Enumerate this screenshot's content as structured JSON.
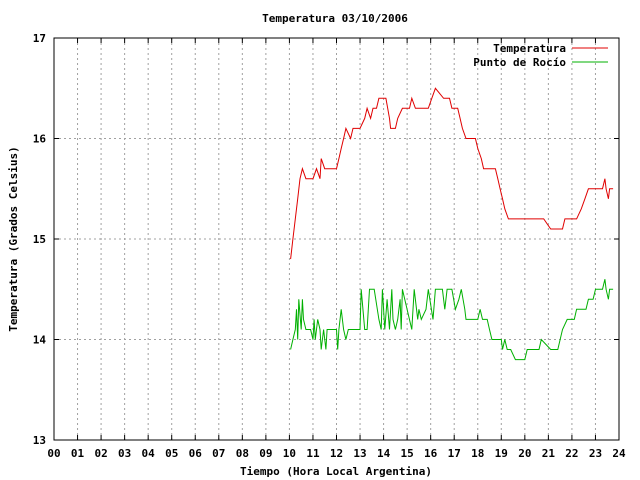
{
  "chart_data": {
    "type": "line",
    "title": "Temperatura 03/10/2006",
    "xlabel": "Tiempo (Hora Local Argentina)",
    "ylabel": "Temperatura (Grados Celsius)",
    "xlim": [
      0,
      24
    ],
    "ylim": [
      13,
      17
    ],
    "xticks": [
      0,
      1,
      2,
      3,
      4,
      5,
      6,
      7,
      8,
      9,
      10,
      11,
      12,
      13,
      14,
      15,
      16,
      17,
      18,
      19,
      20,
      21,
      22,
      23,
      24
    ],
    "xtick_labels": [
      "00",
      "01",
      "02",
      "03",
      "04",
      "05",
      "06",
      "07",
      "08",
      "09",
      "10",
      "11",
      "12",
      "13",
      "14",
      "15",
      "16",
      "17",
      "18",
      "19",
      "20",
      "21",
      "22",
      "23",
      "24"
    ],
    "yticks": [
      13,
      14,
      15,
      16,
      17
    ],
    "ytick_labels": [
      "13",
      "14",
      "15",
      "16",
      "17"
    ],
    "grid": true,
    "legend_position": "top-right",
    "series": [
      {
        "name": "Temperatura",
        "color": "#e00000",
        "points": [
          [
            10.05,
            14.8
          ],
          [
            10.15,
            15.0
          ],
          [
            10.25,
            15.2
          ],
          [
            10.35,
            15.4
          ],
          [
            10.45,
            15.6
          ],
          [
            10.55,
            15.7
          ],
          [
            10.7,
            15.6
          ],
          [
            11.0,
            15.6
          ],
          [
            11.15,
            15.7
          ],
          [
            11.3,
            15.6
          ],
          [
            11.35,
            15.8
          ],
          [
            11.5,
            15.7
          ],
          [
            11.8,
            15.7
          ],
          [
            12.0,
            15.7
          ],
          [
            12.1,
            15.8
          ],
          [
            12.2,
            15.9
          ],
          [
            12.3,
            16.0
          ],
          [
            12.4,
            16.1
          ],
          [
            12.6,
            16.0
          ],
          [
            12.7,
            16.1
          ],
          [
            13.0,
            16.1
          ],
          [
            13.2,
            16.2
          ],
          [
            13.3,
            16.3
          ],
          [
            13.45,
            16.2
          ],
          [
            13.55,
            16.3
          ],
          [
            13.7,
            16.3
          ],
          [
            13.8,
            16.4
          ],
          [
            14.1,
            16.4
          ],
          [
            14.25,
            16.2
          ],
          [
            14.3,
            16.1
          ],
          [
            14.5,
            16.1
          ],
          [
            14.6,
            16.2
          ],
          [
            14.8,
            16.3
          ],
          [
            15.1,
            16.3
          ],
          [
            15.2,
            16.4
          ],
          [
            15.35,
            16.3
          ],
          [
            15.9,
            16.3
          ],
          [
            16.05,
            16.4
          ],
          [
            16.2,
            16.5
          ],
          [
            16.55,
            16.4
          ],
          [
            16.8,
            16.4
          ],
          [
            16.9,
            16.3
          ],
          [
            17.15,
            16.3
          ],
          [
            17.25,
            16.2
          ],
          [
            17.35,
            16.1
          ],
          [
            17.5,
            16.0
          ],
          [
            17.9,
            16.0
          ],
          [
            18.0,
            15.9
          ],
          [
            18.15,
            15.8
          ],
          [
            18.25,
            15.7
          ],
          [
            18.75,
            15.7
          ],
          [
            18.85,
            15.6
          ],
          [
            18.95,
            15.5
          ],
          [
            19.05,
            15.4
          ],
          [
            19.15,
            15.3
          ],
          [
            19.3,
            15.2
          ],
          [
            20.8,
            15.2
          ],
          [
            21.1,
            15.1
          ],
          [
            21.6,
            15.1
          ],
          [
            21.7,
            15.2
          ],
          [
            22.2,
            15.2
          ],
          [
            22.4,
            15.3
          ],
          [
            22.55,
            15.4
          ],
          [
            22.7,
            15.5
          ],
          [
            23.3,
            15.5
          ],
          [
            23.4,
            15.6
          ],
          [
            23.45,
            15.5
          ],
          [
            23.55,
            15.4
          ],
          [
            23.6,
            15.5
          ],
          [
            23.75,
            15.5
          ]
        ]
      },
      {
        "name": "Punto de Rocío",
        "color": "#00b000",
        "points": [
          [
            10.05,
            13.9
          ],
          [
            10.15,
            14.0
          ],
          [
            10.25,
            14.1
          ],
          [
            10.3,
            14.3
          ],
          [
            10.35,
            14.0
          ],
          [
            10.4,
            14.4
          ],
          [
            10.5,
            14.1
          ],
          [
            10.55,
            14.4
          ],
          [
            10.6,
            14.2
          ],
          [
            10.7,
            14.1
          ],
          [
            10.9,
            14.1
          ],
          [
            11.0,
            14.0
          ],
          [
            11.05,
            14.2
          ],
          [
            11.1,
            14.0
          ],
          [
            11.2,
            14.2
          ],
          [
            11.3,
            14.1
          ],
          [
            11.35,
            13.9
          ],
          [
            11.45,
            14.1
          ],
          [
            11.55,
            13.9
          ],
          [
            11.6,
            14.1
          ],
          [
            12.0,
            14.1
          ],
          [
            12.05,
            13.9
          ],
          [
            12.1,
            14.1
          ],
          [
            12.2,
            14.3
          ],
          [
            12.3,
            14.1
          ],
          [
            12.4,
            14.0
          ],
          [
            12.5,
            14.1
          ],
          [
            13.0,
            14.1
          ],
          [
            13.05,
            14.5
          ],
          [
            13.2,
            14.1
          ],
          [
            13.3,
            14.1
          ],
          [
            13.4,
            14.5
          ],
          [
            13.6,
            14.5
          ],
          [
            13.8,
            14.2
          ],
          [
            13.9,
            14.1
          ],
          [
            13.95,
            14.5
          ],
          [
            14.05,
            14.1
          ],
          [
            14.15,
            14.4
          ],
          [
            14.25,
            14.1
          ],
          [
            14.35,
            14.5
          ],
          [
            14.4,
            14.2
          ],
          [
            14.5,
            14.1
          ],
          [
            14.6,
            14.2
          ],
          [
            14.7,
            14.4
          ],
          [
            14.75,
            14.1
          ],
          [
            14.8,
            14.5
          ],
          [
            15.2,
            14.1
          ],
          [
            15.3,
            14.5
          ],
          [
            15.45,
            14.2
          ],
          [
            15.5,
            14.3
          ],
          [
            15.6,
            14.2
          ],
          [
            15.8,
            14.3
          ],
          [
            15.9,
            14.5
          ],
          [
            16.1,
            14.2
          ],
          [
            16.2,
            14.5
          ],
          [
            16.5,
            14.5
          ],
          [
            16.6,
            14.3
          ],
          [
            16.7,
            14.5
          ],
          [
            16.9,
            14.5
          ],
          [
            17.05,
            14.3
          ],
          [
            17.2,
            14.4
          ],
          [
            17.3,
            14.5
          ],
          [
            17.45,
            14.3
          ],
          [
            17.5,
            14.2
          ],
          [
            18.0,
            14.2
          ],
          [
            18.1,
            14.3
          ],
          [
            18.2,
            14.2
          ],
          [
            18.4,
            14.2
          ],
          [
            18.5,
            14.1
          ],
          [
            18.6,
            14.0
          ],
          [
            19.0,
            14.0
          ],
          [
            19.05,
            13.9
          ],
          [
            19.15,
            14.0
          ],
          [
            19.25,
            13.9
          ],
          [
            19.4,
            13.9
          ],
          [
            19.6,
            13.8
          ],
          [
            20.0,
            13.8
          ],
          [
            20.1,
            13.9
          ],
          [
            20.6,
            13.9
          ],
          [
            20.7,
            14.0
          ],
          [
            21.1,
            13.9
          ],
          [
            21.4,
            13.9
          ],
          [
            21.6,
            14.1
          ],
          [
            21.8,
            14.2
          ],
          [
            22.1,
            14.2
          ],
          [
            22.2,
            14.3
          ],
          [
            22.6,
            14.3
          ],
          [
            22.7,
            14.4
          ],
          [
            22.9,
            14.4
          ],
          [
            23.0,
            14.5
          ],
          [
            23.3,
            14.5
          ],
          [
            23.4,
            14.6
          ],
          [
            23.45,
            14.5
          ],
          [
            23.55,
            14.4
          ],
          [
            23.6,
            14.5
          ],
          [
            23.75,
            14.5
          ]
        ]
      }
    ]
  }
}
